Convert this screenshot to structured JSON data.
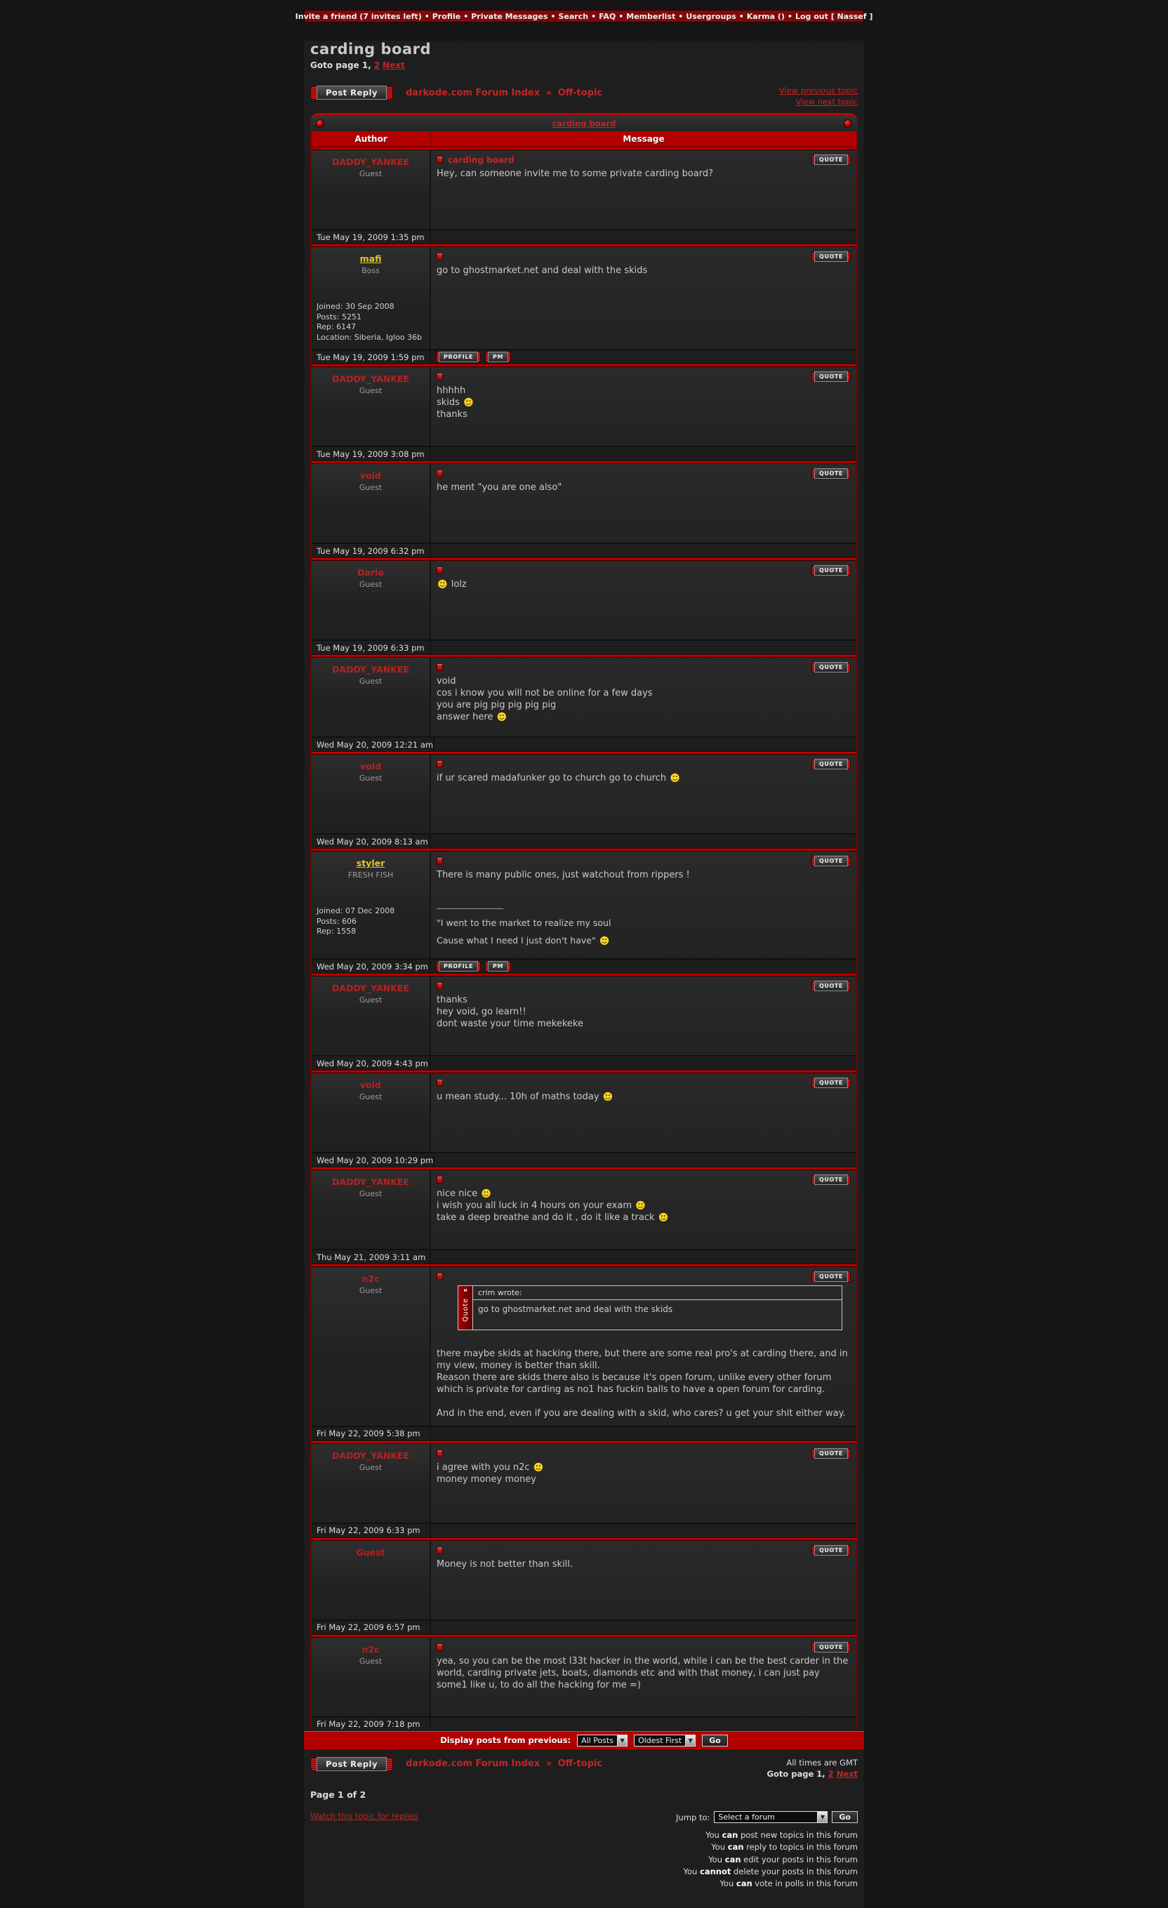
{
  "colors": {
    "accent_red": "#c00000",
    "link_red": "#c22626",
    "member_yellow": "#e6c623",
    "smiley_yellow": "#ffd41e"
  },
  "topbar": {
    "links": [
      "Invite a friend (7 invites left)",
      "Profile",
      "Private Messages",
      "Search",
      "FAQ",
      "Memberlist",
      "Usergroups",
      "Karma ()",
      "Log out [ Nassef ]"
    ],
    "separator": "•"
  },
  "header": {
    "title": "carding board",
    "goto_label": "Goto page 1,",
    "goto_page2": "2",
    "goto_next": "Next",
    "post_reply_label": "Post Reply",
    "breadcrumb_index": "darkode.com Forum Index",
    "breadcrumb_sep": "»",
    "breadcrumb_forum": "Off-topic",
    "view_prev": "View previous topic",
    "view_next": "View next topic",
    "topic_link": "carding board"
  },
  "table": {
    "author_col": "Author",
    "message_col": "Message"
  },
  "labels": {
    "quote": "QUOTE",
    "profile": "PROFILE",
    "pm": "PM"
  },
  "posts": [
    {
      "author": "DADDY_YANKEE",
      "member": false,
      "rank": "Guest",
      "subject": "carding board",
      "body": [
        "Hey, can someone invite me to some private carding board?"
      ],
      "timestamp": "Tue May 19, 2009 1:35 pm"
    },
    {
      "author": "mafi",
      "member": true,
      "rank": "Boss",
      "info": [
        "Joined: 30 Sep 2008",
        "Posts: 5251",
        "Rep: 6147",
        "Location: Siberia, Igloo 36b"
      ],
      "body": [
        "go to ghostmarket.net and deal with the skids"
      ],
      "timestamp": "Tue May 19, 2009 1:59 pm",
      "buttons": [
        "PROFILE",
        "PM"
      ]
    },
    {
      "author": "DADDY_YANKEE",
      "member": false,
      "rank": "Guest",
      "body": [
        "hhhhh",
        "skids {grin}",
        "thanks"
      ],
      "timestamp": "Tue May 19, 2009 3:08 pm"
    },
    {
      "author": "void",
      "member": false,
      "rank": "Guest",
      "body": [
        "he ment \"you are one also\""
      ],
      "timestamp": "Tue May 19, 2009 6:32 pm"
    },
    {
      "author": "Dario",
      "member": false,
      "rank": "Guest",
      "body": [
        "{grin} lolz"
      ],
      "timestamp": "Tue May 19, 2009 6:33 pm"
    },
    {
      "author": "DADDY_YANKEE",
      "member": false,
      "rank": "Guest",
      "body": [
        "void",
        "cos i know you will not be online for a few days",
        "you are pig pig pig pig pig",
        "answer here {grin}"
      ],
      "timestamp": "Wed May 20, 2009 12:21 am"
    },
    {
      "author": "void",
      "member": false,
      "rank": "Guest",
      "body": [
        "if ur scared madafunker go to church go to church {smile}"
      ],
      "timestamp": "Wed May 20, 2009 8:13 am"
    },
    {
      "author": "styler",
      "member": true,
      "rank": "FRESH FISH",
      "info": [
        "Joined: 07 Dec 2008",
        "Posts: 606",
        "Rep: 1558"
      ],
      "body": [
        "There is many public ones, just watchout from rippers !"
      ],
      "signature": [
        "\"I went to the market to realize my soul",
        "Cause what I need I just don't have\" {cool}"
      ],
      "timestamp": "Wed May 20, 2009 3:34 pm",
      "buttons": [
        "PROFILE",
        "PM"
      ]
    },
    {
      "author": "DADDY_YANKEE",
      "member": false,
      "rank": "Guest",
      "body": [
        "thanks",
        "hey void, go learn!!",
        "dont waste your time mekekeke"
      ],
      "timestamp": "Wed May 20, 2009 4:43 pm"
    },
    {
      "author": "void",
      "member": false,
      "rank": "Guest",
      "body": [
        "u mean study... 10h of maths today {eek}"
      ],
      "timestamp": "Wed May 20, 2009 10:29 pm"
    },
    {
      "author": "DADDY_YANKEE",
      "member": false,
      "rank": "Guest",
      "body": [
        "nice nice {smile}",
        "i wish you all luck in 4 hours on your exam {smile}",
        "take a deep breathe and do it , do it like a track {grin}"
      ],
      "timestamp": "Thu May 21, 2009 3:11 am"
    },
    {
      "author": "n2c",
      "member": false,
      "rank": "Guest",
      "quote": {
        "label": "Quote",
        "header": "crim wrote:",
        "body": "go to ghostmarket.net and deal with the skids"
      },
      "body": [
        "there maybe skids at hacking there, but there are some real pro's at carding there, and in my view, money is better than skill.",
        "Reason there are skids there also is because it's open forum, unlike every other forum which is private for carding as no1 has fuckin balls to have a open forum for carding.",
        "",
        "And in the end, even if you are dealing with a skid, who cares? u get your shit either way."
      ],
      "timestamp": "Fri May 22, 2009 5:38 pm"
    },
    {
      "author": "DADDY_YANKEE",
      "member": false,
      "rank": "Guest",
      "body": [
        "i agree with you n2c {smile}",
        "money money money"
      ],
      "timestamp": "Fri May 22, 2009 6:33 pm"
    },
    {
      "author": "Guest",
      "member": false,
      "rank": "",
      "body": [
        "Money is not better than skill."
      ],
      "timestamp": "Fri May 22, 2009 6:57 pm"
    },
    {
      "author": "n2c",
      "member": false,
      "rank": "Guest",
      "body": [
        "yea, so you can be the most l33t hacker in the world, while i can be the best carder in the world, carding private jets, boats, diamonds etc and with that money, i can just pay some1 like u, to do all the hacking for me =)"
      ],
      "timestamp": "Fri May 22, 2009 7:18 pm"
    }
  ],
  "footer": {
    "display_label": "Display posts from previous:",
    "filter_value": "All Posts",
    "order_value": "Oldest First",
    "go_label": "Go",
    "post_reply_label": "Post Reply",
    "breadcrumb_index": "darkode.com Forum Index",
    "breadcrumb_sep": "»",
    "breadcrumb_forum": "Off-topic",
    "all_times": "All times are GMT",
    "goto_label": "Goto page 1,",
    "goto_page2": "2",
    "goto_next": "Next",
    "page_label": "Page 1 of 2",
    "watch_link": "Watch this topic for replies",
    "jump_label": "Jump to:",
    "jump_value": "Select a forum",
    "jump_go": "Go",
    "permissions": [
      {
        "pre": "You ",
        "verb": "can",
        "rest": " post new topics in this forum"
      },
      {
        "pre": "You ",
        "verb": "can",
        "rest": " reply to topics in this forum"
      },
      {
        "pre": "You ",
        "verb": "can",
        "rest": " edit your posts in this forum"
      },
      {
        "pre": "You ",
        "verb": "cannot",
        "rest": " delete your posts in this forum"
      },
      {
        "pre": "You ",
        "verb": "can",
        "rest": " vote in polls in this forum"
      }
    ]
  }
}
